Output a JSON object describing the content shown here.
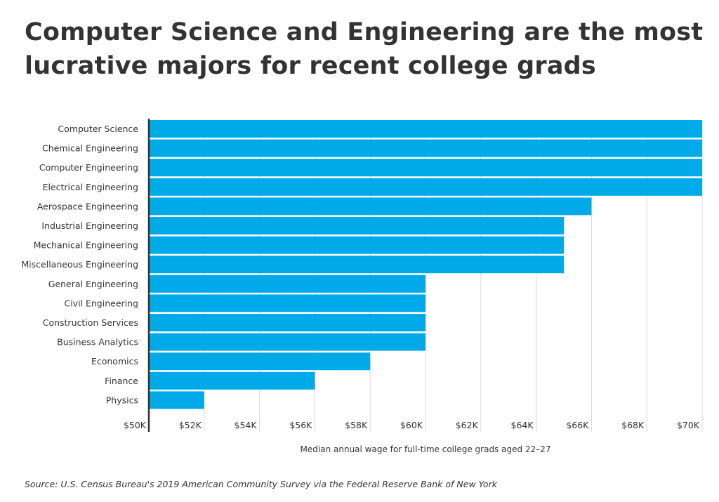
{
  "title": "Computer Science and Engineering are the most lucrative majors for recent college grads",
  "source": "Source:  U.S. Census Bureau's 2019 American Community Survey via the Federal Reserve Bank of New York",
  "chart_data": {
    "type": "bar",
    "orientation": "horizontal",
    "title": "Computer Science and Engineering are the most lucrative majors for recent college grads",
    "xlabel": "Median annual wage for full-time college grads aged 22–27",
    "ylabel": "",
    "xlim": [
      50000,
      70000
    ],
    "grid": true,
    "bar_color": "#00a9e8",
    "categories": [
      "Computer Science",
      "Chemical Engineering",
      "Computer Engineering",
      "Electrical Engineering",
      "Aerospace Engineering",
      "Industrial Engineering",
      "Mechanical Engineering",
      "Miscellaneous Engineering",
      "General Engineering",
      "Civil Engineering",
      "Construction Services",
      "Business Analytics",
      "Economics",
      "Finance",
      "Physics"
    ],
    "values": [
      70000,
      70000,
      70000,
      70000,
      66000,
      65000,
      65000,
      65000,
      60000,
      60000,
      60000,
      60000,
      58000,
      56000,
      52000
    ],
    "x_ticks": [
      50000,
      52000,
      54000,
      56000,
      58000,
      60000,
      62000,
      64000,
      66000,
      68000,
      70000
    ],
    "x_tick_labels": [
      "$50K",
      "$52K",
      "$54K",
      "$56K",
      "$58K",
      "$60K",
      "$62K",
      "$64K",
      "$66K",
      "$68K",
      "$70K"
    ]
  }
}
